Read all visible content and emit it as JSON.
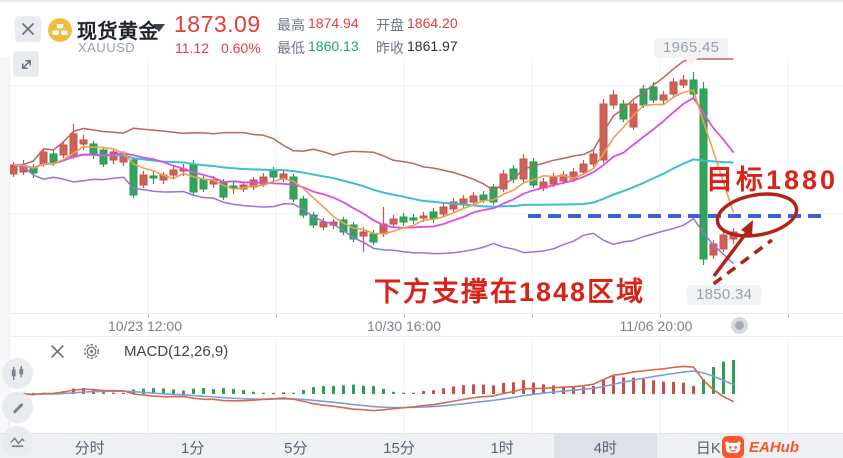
{
  "header": {
    "symbol_name": "现货黄金",
    "symbol_code": "XAUUSD",
    "price": "1873.09",
    "change": "11.12",
    "change_pct": "0.60%",
    "stats": [
      {
        "label": "最高",
        "value": "1874.94",
        "color": "red"
      },
      {
        "label": "开盘",
        "value": "1864.20",
        "color": "red"
      },
      {
        "label": "最低",
        "value": "1860.13",
        "color": "green"
      },
      {
        "label": "昨收",
        "value": "1861.97",
        "color": "dark"
      }
    ]
  },
  "colors": {
    "up_red": "#cf6058",
    "down_green": "#31a65a",
    "header_red": "#e23c3c",
    "header_green": "#1ea46a",
    "ma_upper_band": "#bd655e",
    "ma5": "#eda052",
    "ma10": "#e04ee0",
    "ma30": "#3ebdd6",
    "ma_lower_band": "#9b70dd",
    "support_line_blue": "#3a63d4",
    "annotation_red": "#da2318",
    "annotation_shape_red": "#b02418",
    "macd_dif": "#d4694f",
    "macd_dea": "#7b9ce0",
    "hist_up": "#c94f46",
    "hist_down": "#2f9e53",
    "brand_orange": "#f4582c"
  },
  "chart_data": {
    "type": "candlestick",
    "symbol": "XAUUSD",
    "interval": "4时",
    "ylim": [
      1848,
      1970
    ],
    "x_axis_labels": [
      "10/23 12:00",
      "10/30 16:00",
      "11/06 20:00"
    ],
    "up_means": "red = bullish (CN convention)",
    "candles_ohlc": [
      [
        1904.6,
        1911.8,
        1902.8,
        1910.0
      ],
      [
        1905.8,
        1913.0,
        1904.0,
        1909.4
      ],
      [
        1908.8,
        1910.6,
        1902.2,
        1905.2
      ],
      [
        1910.6,
        1919.6,
        1908.8,
        1917.8
      ],
      [
        1916.6,
        1919.0,
        1909.4,
        1911.8
      ],
      [
        1916.0,
        1924.4,
        1914.2,
        1922.0
      ],
      [
        1914.8,
        1934.6,
        1913.6,
        1928.6
      ],
      [
        1922.6,
        1928.0,
        1919.0,
        1925.0
      ],
      [
        1922.6,
        1924.4,
        1913.6,
        1916.0
      ],
      [
        1919.0,
        1920.8,
        1908.8,
        1910.6
      ],
      [
        1913.0,
        1919.6,
        1910.6,
        1917.8
      ],
      [
        1911.8,
        1918.4,
        1909.4,
        1916.6
      ],
      [
        1913.0,
        1914.8,
        1890.2,
        1892.0
      ],
      [
        1898.0,
        1906.4,
        1896.2,
        1904.0
      ],
      [
        1903.4,
        1907.0,
        1898.6,
        1902.2
      ],
      [
        1901.0,
        1905.8,
        1898.6,
        1904.0
      ],
      [
        1904.0,
        1909.4,
        1902.2,
        1907.0
      ],
      [
        1906.4,
        1910.6,
        1903.4,
        1907.6
      ],
      [
        1910.6,
        1913.0,
        1892.0,
        1893.8
      ],
      [
        1901.6,
        1903.4,
        1893.8,
        1895.6
      ],
      [
        1898.6,
        1903.4,
        1896.2,
        1901.0
      ],
      [
        1899.8,
        1901.6,
        1889.0,
        1890.8
      ],
      [
        1897.4,
        1900.4,
        1892.6,
        1896.2
      ],
      [
        1895.6,
        1899.8,
        1893.8,
        1898.0
      ],
      [
        1896.8,
        1902.8,
        1895.0,
        1901.0
      ],
      [
        1898.6,
        1905.2,
        1896.8,
        1902.8
      ],
      [
        1907.0,
        1908.8,
        1900.4,
        1902.8
      ],
      [
        1901.6,
        1907.0,
        1899.8,
        1904.6
      ],
      [
        1902.8,
        1904.6,
        1887.8,
        1889.6
      ],
      [
        1889.6,
        1891.4,
        1878.2,
        1880.0
      ],
      [
        1880.0,
        1881.8,
        1872.2,
        1874.0
      ],
      [
        1872.8,
        1878.2,
        1871.0,
        1875.8
      ],
      [
        1874.0,
        1877.6,
        1871.6,
        1875.8
      ],
      [
        1877.0,
        1878.8,
        1868.0,
        1869.8
      ],
      [
        1874.0,
        1875.8,
        1863.8,
        1865.6
      ],
      [
        1867.4,
        1872.8,
        1857.8,
        1869.8
      ],
      [
        1868.6,
        1871.0,
        1862.0,
        1863.8
      ],
      [
        1868.6,
        1884.8,
        1866.8,
        1874.6
      ],
      [
        1874.6,
        1880.0,
        1872.2,
        1877.6
      ],
      [
        1878.8,
        1881.2,
        1873.4,
        1875.8
      ],
      [
        1878.2,
        1880.6,
        1874.6,
        1877.0
      ],
      [
        1878.2,
        1881.8,
        1875.8,
        1879.4
      ],
      [
        1881.8,
        1884.2,
        1875.2,
        1877.6
      ],
      [
        1880.6,
        1887.2,
        1878.8,
        1884.8
      ],
      [
        1883.6,
        1890.2,
        1881.8,
        1887.8
      ],
      [
        1886.0,
        1892.0,
        1884.2,
        1889.6
      ],
      [
        1887.8,
        1893.8,
        1886.0,
        1891.4
      ],
      [
        1892.0,
        1894.4,
        1887.2,
        1889.0
      ],
      [
        1896.8,
        1898.6,
        1886.0,
        1887.8
      ],
      [
        1895.6,
        1907.0,
        1893.8,
        1904.6
      ],
      [
        1907.6,
        1910.0,
        1899.2,
        1901.6
      ],
      [
        1901.6,
        1916.6,
        1899.8,
        1913.6
      ],
      [
        1911.8,
        1914.2,
        1896.2,
        1898.0
      ],
      [
        1896.2,
        1902.2,
        1894.4,
        1899.8
      ],
      [
        1898.6,
        1905.2,
        1896.8,
        1902.8
      ],
      [
        1900.4,
        1906.4,
        1898.6,
        1904.0
      ],
      [
        1901.6,
        1908.2,
        1899.8,
        1905.8
      ],
      [
        1905.8,
        1913.0,
        1904.0,
        1910.6
      ],
      [
        1910.6,
        1919.0,
        1908.8,
        1916.6
      ],
      [
        1913.0,
        1949.6,
        1911.2,
        1946.6
      ],
      [
        1946.0,
        1955.0,
        1943.6,
        1952.0
      ],
      [
        1946.6,
        1949.0,
        1935.8,
        1937.6
      ],
      [
        1932.8,
        1948.4,
        1931.0,
        1946.6
      ],
      [
        1955.6,
        1958.0,
        1944.2,
        1946.0
      ],
      [
        1956.8,
        1959.8,
        1947.2,
        1949.0
      ],
      [
        1949.0,
        1954.4,
        1946.6,
        1952.0
      ],
      [
        1952.6,
        1962.2,
        1950.8,
        1959.8
      ],
      [
        1958.0,
        1964.0,
        1956.2,
        1961.0
      ],
      [
        1961.0,
        1965.8,
        1950.8,
        1952.6
      ],
      [
        1955.6,
        1959.8,
        1850.0,
        1853.6
      ],
      [
        1856.0,
        1865.0,
        1853.6,
        1862.6
      ],
      [
        1859.6,
        1870.4,
        1857.8,
        1868.0
      ],
      [
        1865.6,
        1872.2,
        1862.6,
        1869.8
      ]
    ]
  },
  "annotations": {
    "high_marker": "1965.45",
    "low_marker": "1850.34",
    "target_text": "目标1880",
    "support_text": "下方支撑在1848区域",
    "support_line_price": 1880
  },
  "macd": {
    "label": "MACD(12,26,9)",
    "fast": 12,
    "slow": 26,
    "signal": 9
  },
  "toolbar": {
    "tabs": [
      "分时",
      "1分",
      "5分",
      "15分",
      "1时",
      "4时",
      "日K"
    ],
    "selected": "4时",
    "brand": "EAHub"
  }
}
